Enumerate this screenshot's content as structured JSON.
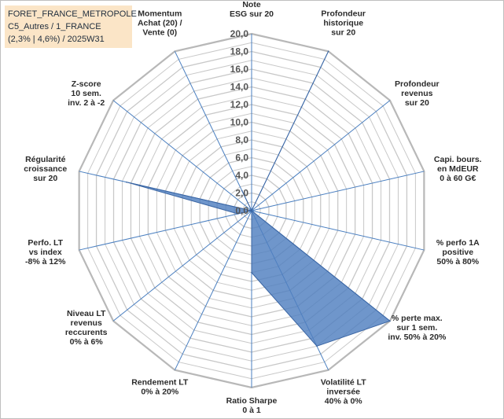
{
  "info_box": {
    "line1": "FORET_FRANCE_METROPOLE",
    "line2": "C5_Autres / 1_FRANCE",
    "line3": "(2,3% | 4,6%) / 2025W31"
  },
  "chart_data": {
    "type": "radar",
    "title": "",
    "rlim": [
      0,
      20
    ],
    "tick_step": 2,
    "ticks": [
      "0,0",
      "2,0",
      "4,0",
      "6,0",
      "8,0",
      "10,0",
      "12,0",
      "14,0",
      "16,0",
      "18,0",
      "20,0"
    ],
    "minor_step": 1,
    "grid": true,
    "axes": [
      {
        "label": [
          "Note",
          "ESG sur 20"
        ],
        "value": 0
      },
      {
        "label": [
          "Profondeur",
          "historique",
          "sur 20"
        ],
        "value": 20
      },
      {
        "label": [
          "Profondeur",
          "revenus",
          "sur 20"
        ],
        "value": 0
      },
      {
        "label": [
          "Capi. bours.",
          "en MdEUR",
          "0 à 60 G€"
        ],
        "value": 0
      },
      {
        "label": [
          "% perfo 1A",
          "positive",
          "50% à 80%"
        ],
        "value": 0
      },
      {
        "label": [
          "% perte max.",
          "sur 1 sem.",
          "inv. 50% à 20%"
        ],
        "value": 20
      },
      {
        "label": [
          "Volatilité LT",
          "inversée",
          "40% à 0%"
        ],
        "value": 17
      },
      {
        "label": [
          "Ratio Sharpe",
          "0 à 1"
        ],
        "value": 7
      },
      {
        "label": [
          "Rendement LT",
          "0% à 20%"
        ],
        "value": 0
      },
      {
        "label": [
          "Niveau LT",
          "revenus",
          "reccurents",
          "0% à 6%"
        ],
        "value": 0
      },
      {
        "label": [
          "Perfo. LT",
          "vs index",
          "-8% à 12%"
        ],
        "value": 1.6
      },
      {
        "label": [
          "Régularité",
          "croissance",
          "sur 20"
        ],
        "value": 14.5
      },
      {
        "label": [
          "Z-score",
          "10 sem.",
          "inv. 2 à -2"
        ],
        "value": 0
      },
      {
        "label": [
          "Momentum",
          "Achat (20) /",
          "Vente (0)"
        ],
        "value": 2.5
      }
    ],
    "colors": {
      "fill": "#4f7fbf",
      "fill_opacity": 0.82,
      "stroke": "#3a65a3",
      "grid": "#d0d0d0",
      "spoke": "#4a7fc0",
      "ring": "#c8c8c8"
    }
  }
}
